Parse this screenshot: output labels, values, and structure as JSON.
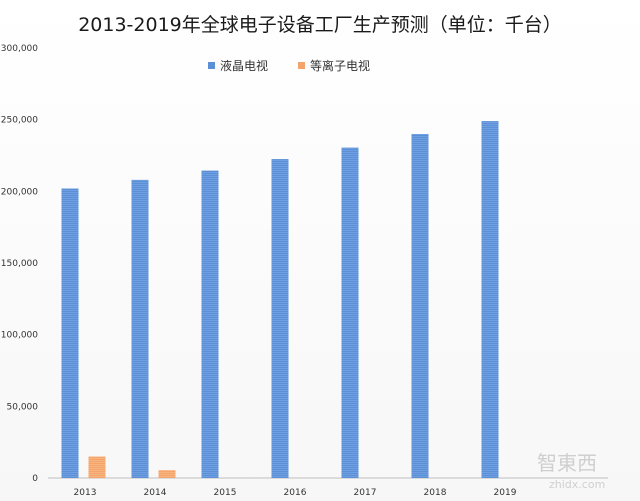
{
  "chart_data": {
    "type": "bar",
    "title": "2013-2019年全球电子设备工厂生产预测（单位：千台）",
    "categories": [
      "2013",
      "2014",
      "2015",
      "2016",
      "2017",
      "2018",
      "2019"
    ],
    "series": [
      {
        "name": "液晶电视",
        "color": "#5b8fd6",
        "values": [
          202000,
          208000,
          214500,
          222500,
          230500,
          240000,
          249000
        ]
      },
      {
        "name": "等离子电视",
        "color": "#f4a46a",
        "values": [
          15000,
          5500,
          0,
          0,
          0,
          0,
          0
        ]
      }
    ],
    "yticks": [
      "0",
      "50,000",
      "100,000",
      "150,000",
      "200,000",
      "250,000",
      "300,000"
    ],
    "ylim": [
      0,
      300000
    ],
    "legend_position": "top-center",
    "grid": false,
    "xlabel": "",
    "ylabel": ""
  },
  "watermark": {
    "text": "智東西",
    "subtext": "zhidx.com"
  }
}
